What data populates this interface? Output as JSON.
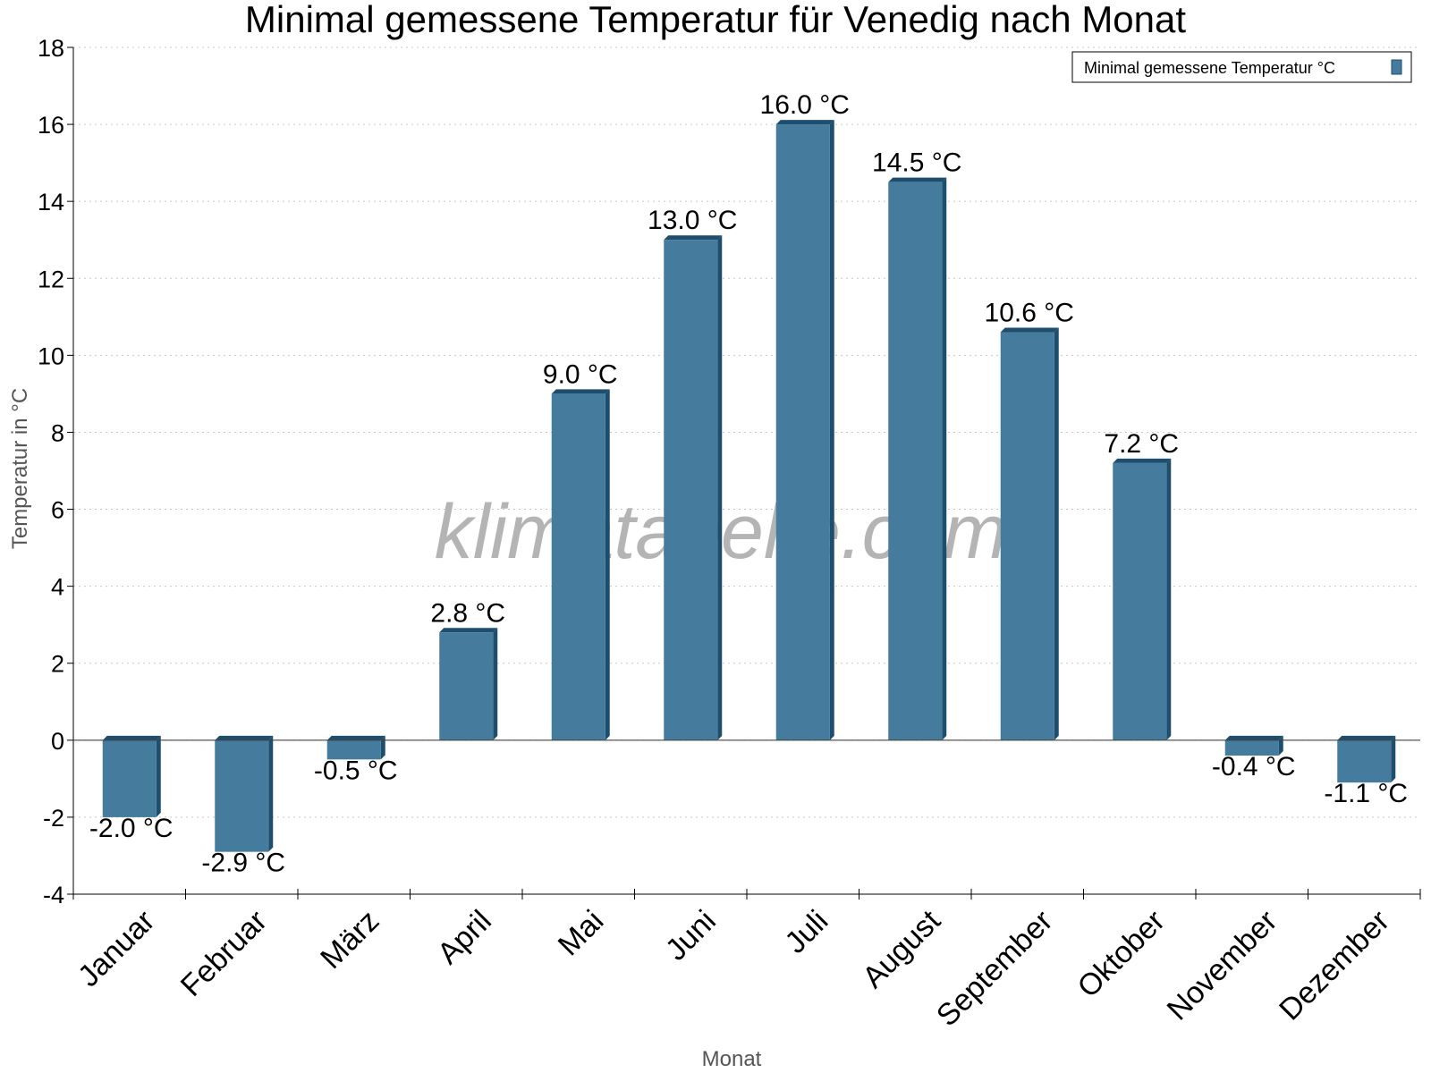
{
  "chart_data": {
    "type": "bar",
    "title": "Minimal gemessene Temperatur für Venedig nach Monat",
    "xlabel": "Monat",
    "ylabel": "Temperatur in °C",
    "categories": [
      "Januar",
      "Februar",
      "März",
      "April",
      "Mai",
      "Juni",
      "Juli",
      "August",
      "September",
      "Oktober",
      "November",
      "Dezember"
    ],
    "series": [
      {
        "name": "Minimal gemessene Temperatur °C",
        "values": [
          -2.0,
          -2.9,
          -0.5,
          2.8,
          9.0,
          13.0,
          16.0,
          14.5,
          10.6,
          7.2,
          -0.4,
          -1.1
        ],
        "color": "#457b9d",
        "side_color": "#1d4e6e"
      }
    ],
    "data_labels": [
      "-2.0 °C",
      "-2.9 °C",
      "-0.5 °C",
      "2.8 °C",
      "9.0 °C",
      "13.0 °C",
      "16.0 °C",
      "14.5 °C",
      "10.6 °C",
      "7.2 °C",
      "-0.4 °C",
      "-1.1 °C"
    ],
    "ylim": [
      -4,
      18
    ],
    "yticks": [
      -4,
      -2,
      0,
      2,
      4,
      6,
      8,
      10,
      12,
      14,
      16,
      18
    ],
    "grid": true,
    "legend_position": "top-right"
  },
  "watermark": "klimatabelle.com"
}
